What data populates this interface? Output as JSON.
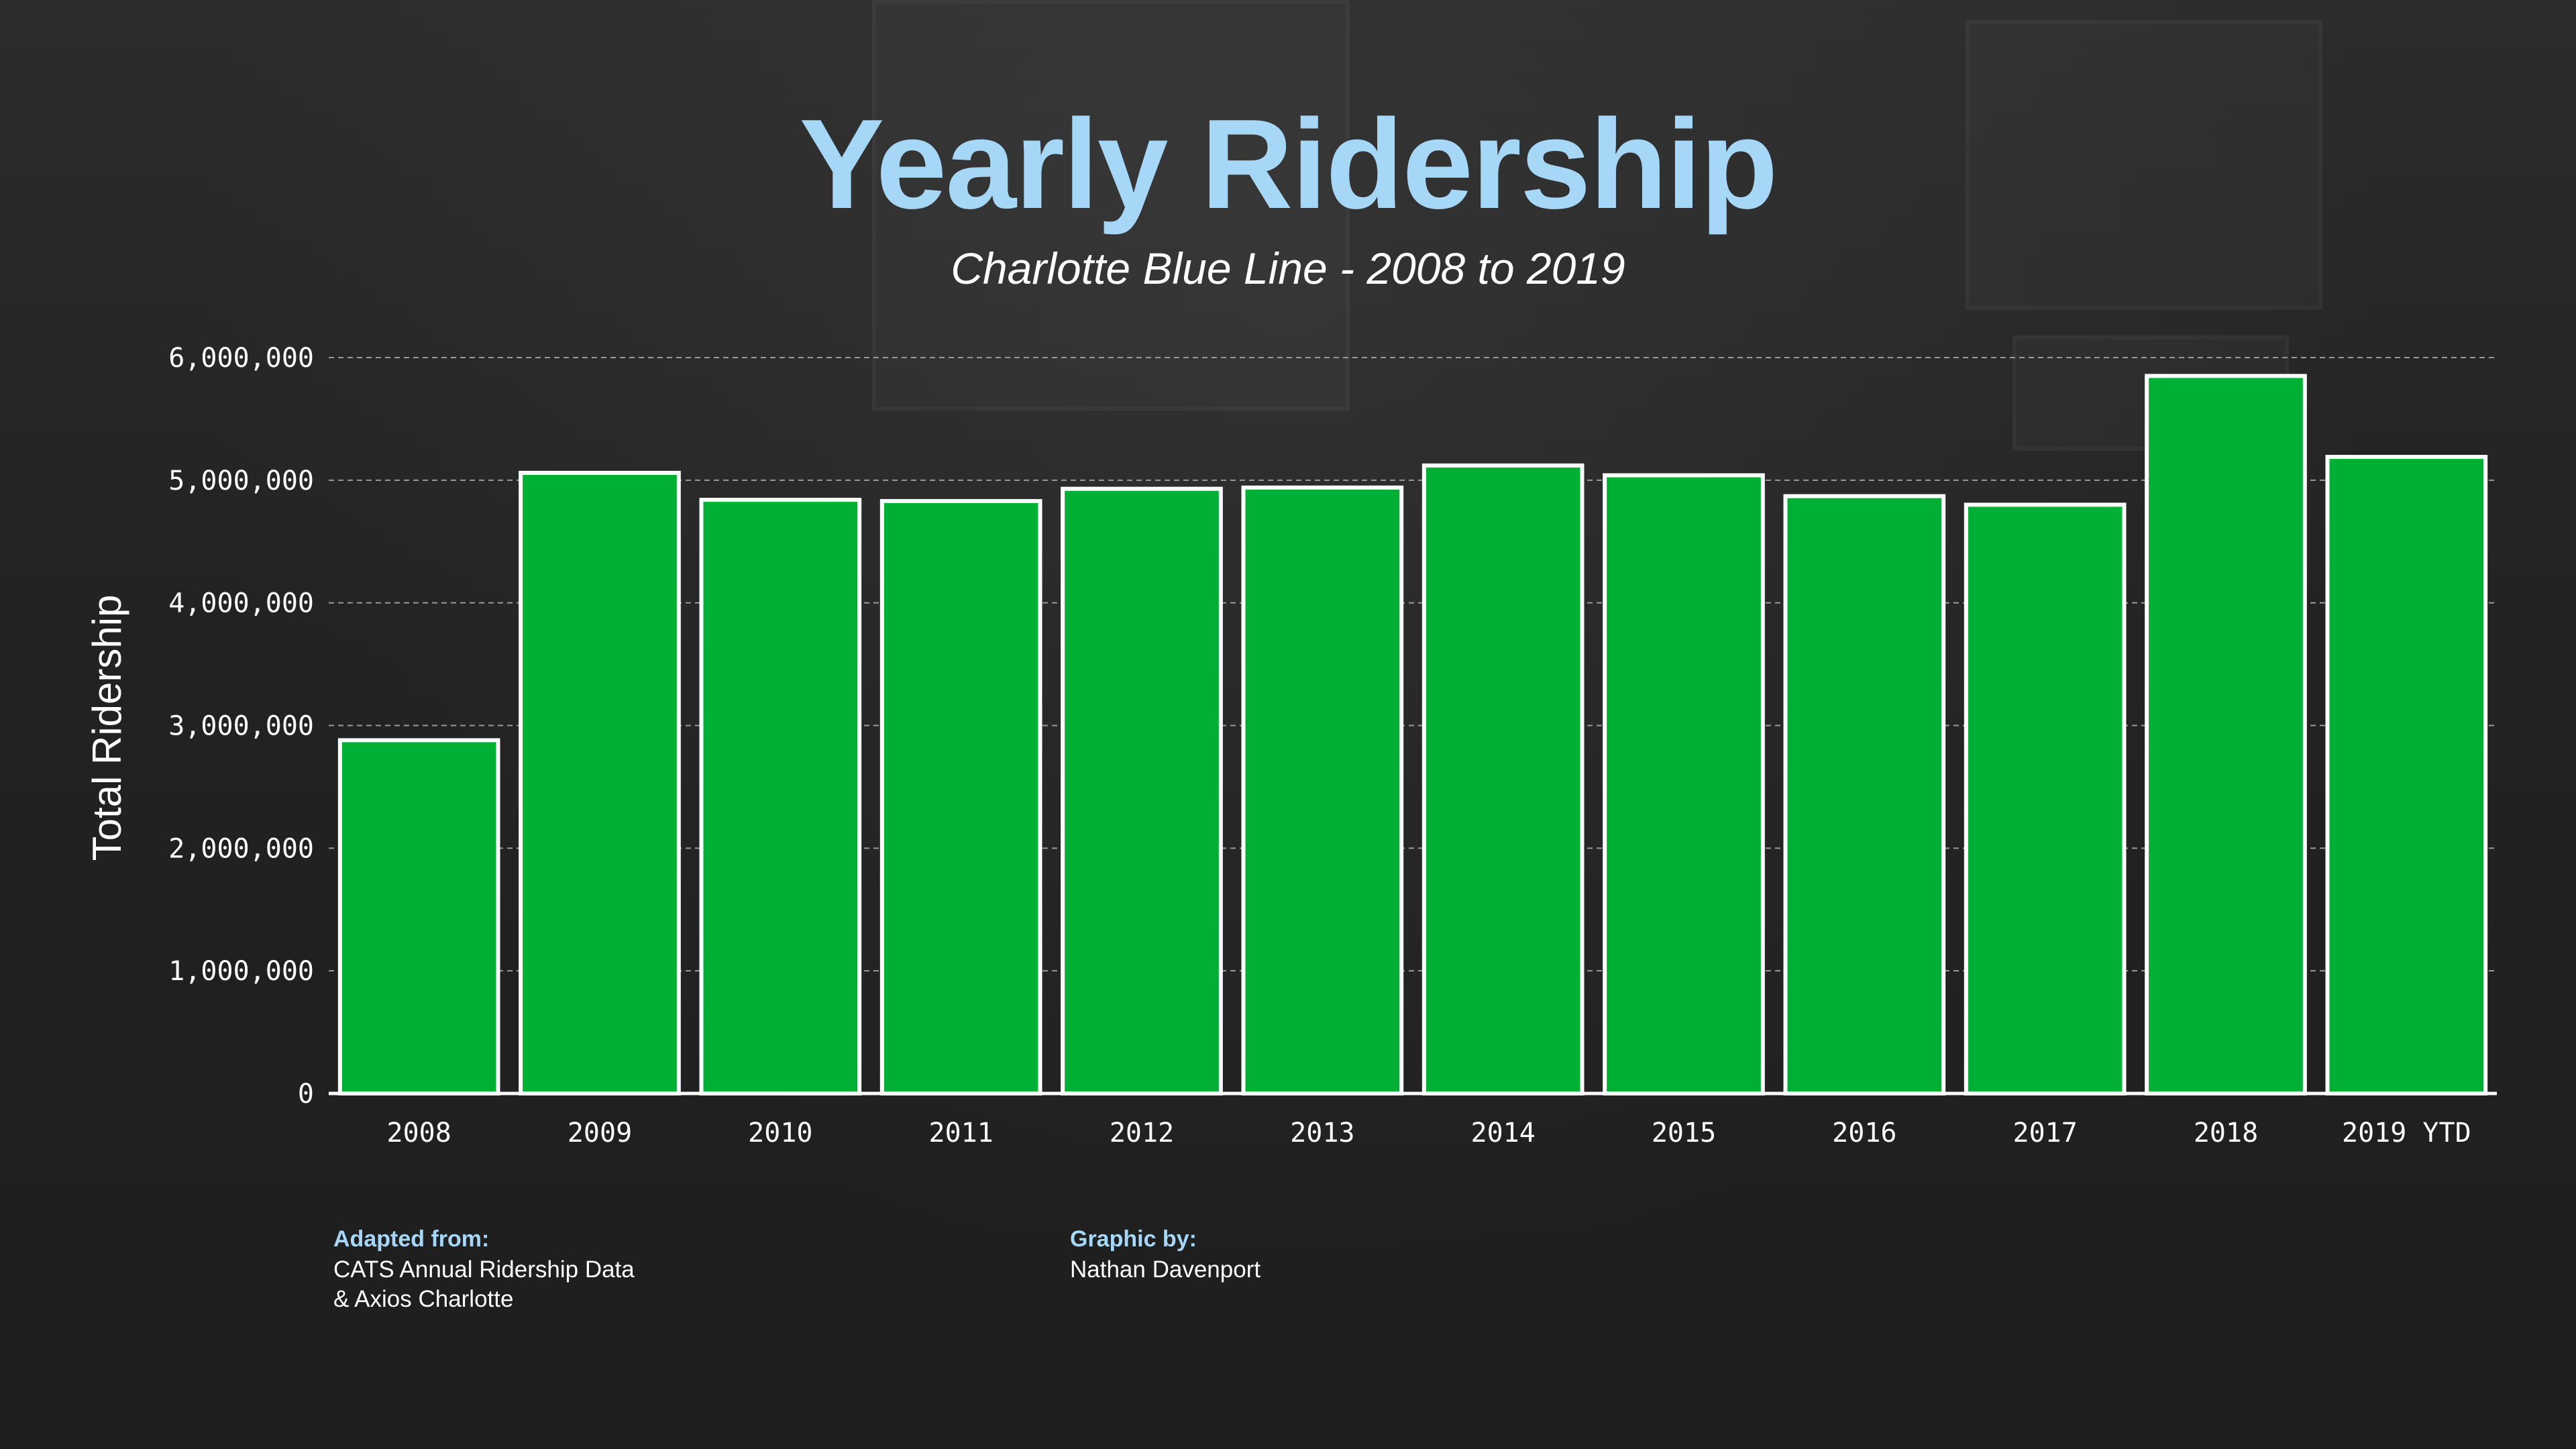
{
  "chart_data": {
    "type": "bar",
    "title": "Yearly Ridership",
    "subtitle": "Charlotte Blue Line - 2008 to 2019",
    "ylabel": "Total Ridership",
    "xlabel": "",
    "categories": [
      "2008",
      "2009",
      "2010",
      "2011",
      "2012",
      "2013",
      "2014",
      "2015",
      "2016",
      "2017",
      "2018",
      "2019 YTD"
    ],
    "values": [
      2880000,
      5060000,
      4840000,
      4830000,
      4930000,
      4940000,
      5120000,
      5040000,
      4870000,
      4800000,
      5850000,
      5190000
    ],
    "ylim": [
      0,
      6000000
    ],
    "yticks": [
      0,
      1000000,
      2000000,
      3000000,
      4000000,
      5000000,
      6000000
    ],
    "ytick_labels": [
      "0",
      "1,000,000",
      "2,000,000",
      "3,000,000",
      "4,000,000",
      "5,000,000",
      "6,000,000"
    ],
    "grid": "horizontal dashed",
    "colors": {
      "bar": "#00b035",
      "bar_edge": "#ffffff",
      "title": "#a7d7f7",
      "background": "#252525"
    }
  },
  "credits": {
    "adapted_heading": "Adapted from:",
    "adapted_line1": "CATS Annual Ridership Data",
    "adapted_line2": "& Axios Charlotte",
    "graphic_heading": "Graphic by:",
    "graphic_line1": "Nathan Davenport"
  }
}
